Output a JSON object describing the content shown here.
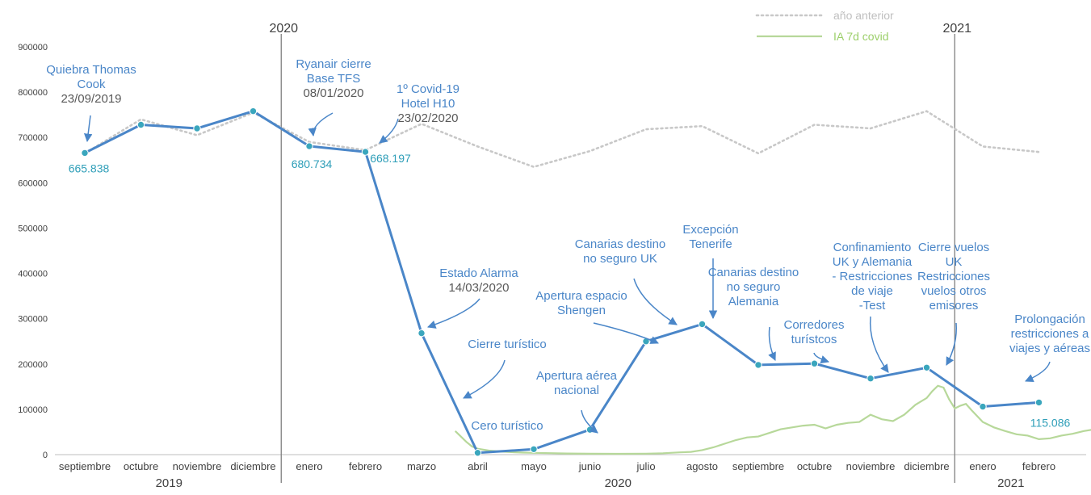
{
  "chart_data": {
    "type": "line",
    "title": "",
    "xlabel": "",
    "ylabel": "",
    "ylim": [
      0,
      900000
    ],
    "yticks": [
      "0",
      "100000",
      "200000",
      "300000",
      "400000",
      "500000",
      "600000",
      "700000",
      "800000",
      "900000"
    ],
    "categories": [
      "septiembre",
      "octubre",
      "noviembre",
      "diciembre",
      "enero",
      "febrero",
      "marzo",
      "abril",
      "mayo",
      "junio",
      "julio",
      "agosto",
      "septiembre",
      "octubre",
      "noviembre",
      "diciembre",
      "enero",
      "febrero"
    ],
    "year_groups": [
      {
        "label": "2019",
        "from": 0,
        "to": 3
      },
      {
        "label": "2020",
        "from": 4,
        "to": 15
      },
      {
        "label": "2021",
        "from": 16,
        "to": 17
      }
    ],
    "year_markers": [
      {
        "label": "2020",
        "after_index": 3
      },
      {
        "label": "2021",
        "after_index": 15
      }
    ],
    "series": [
      {
        "id": "main",
        "values": [
          665838,
          728000,
          720000,
          758000,
          680734,
          668197,
          268000,
          4000,
          12000,
          55000,
          250000,
          288000,
          198000,
          201000,
          168000,
          192000,
          106000,
          115086
        ],
        "color": "#4a86c8"
      },
      {
        "id": "prev",
        "name": "año anterior",
        "values": [
          665000,
          740000,
          705000,
          755000,
          690000,
          672000,
          730000,
          680000,
          635000,
          670000,
          718000,
          725000,
          665000,
          728000,
          720000,
          758000,
          680000,
          668000
        ],
        "color": "#c8c8c8",
        "style": "dotted"
      },
      {
        "id": "covid",
        "name": "IA 7d covid",
        "color": "#b7d89a",
        "samples": [
          [
            6.6,
            52000
          ],
          [
            6.7,
            40000
          ],
          [
            6.8,
            28000
          ],
          [
            6.9,
            18000
          ],
          [
            7.0,
            13000
          ],
          [
            7.2,
            9000
          ],
          [
            7.4,
            7000
          ],
          [
            7.6,
            5500
          ],
          [
            7.8,
            4500
          ],
          [
            8.0,
            4000
          ],
          [
            8.3,
            3200
          ],
          [
            8.6,
            2500
          ],
          [
            9.0,
            2000
          ],
          [
            9.5,
            1800
          ],
          [
            10.0,
            2200
          ],
          [
            10.3,
            3000
          ],
          [
            10.6,
            5000
          ],
          [
            10.8,
            6000
          ],
          [
            11.0,
            10000
          ],
          [
            11.2,
            16000
          ],
          [
            11.4,
            24000
          ],
          [
            11.6,
            32000
          ],
          [
            11.8,
            38000
          ],
          [
            12.0,
            40000
          ],
          [
            12.2,
            48000
          ],
          [
            12.4,
            56000
          ],
          [
            12.6,
            60000
          ],
          [
            12.8,
            64000
          ],
          [
            13.0,
            66000
          ],
          [
            13.2,
            58000
          ],
          [
            13.4,
            66000
          ],
          [
            13.6,
            70000
          ],
          [
            13.8,
            72000
          ],
          [
            14.0,
            88000
          ],
          [
            14.2,
            78000
          ],
          [
            14.4,
            74000
          ],
          [
            14.6,
            88000
          ],
          [
            14.8,
            110000
          ],
          [
            15.0,
            125000
          ],
          [
            15.1,
            140000
          ],
          [
            15.2,
            152000
          ],
          [
            15.3,
            148000
          ],
          [
            15.4,
            122000
          ],
          [
            15.5,
            102000
          ],
          [
            15.6,
            108000
          ],
          [
            15.7,
            112000
          ],
          [
            15.8,
            98000
          ],
          [
            15.9,
            85000
          ],
          [
            16.0,
            72000
          ],
          [
            16.2,
            60000
          ],
          [
            16.4,
            52000
          ],
          [
            16.6,
            45000
          ],
          [
            16.8,
            42000
          ],
          [
            17.0,
            34000
          ],
          [
            17.2,
            36000
          ],
          [
            17.4,
            42000
          ],
          [
            17.6,
            46000
          ],
          [
            17.8,
            52000
          ],
          [
            18.0,
            56000
          ],
          [
            18.2,
            60000
          ]
        ]
      }
    ],
    "value_labels": [
      {
        "index": 0,
        "text": "665.838"
      },
      {
        "index": 4,
        "text": "680.734"
      },
      {
        "index": 5,
        "text": "668.197"
      },
      {
        "index": 17,
        "text": "115.086"
      }
    ],
    "legend": {
      "position": "top-right"
    },
    "annotations": [
      {
        "lines": [
          "Quiebra Thomas",
          "Cook"
        ],
        "subtitle": "23/09/2019",
        "target_index": 0
      },
      {
        "lines": [
          "Ryanair cierre",
          "Base TFS"
        ],
        "subtitle": "08/01/2020",
        "target_index": 4
      },
      {
        "lines": [
          "1º Covid-19",
          "Hotel H10"
        ],
        "subtitle": "23/02/2020",
        "target_index": 5
      },
      {
        "lines": [
          "Estado Alarma"
        ],
        "subtitle": "14/03/2020",
        "target_index": 6
      },
      {
        "lines": [
          "Cierre turístico"
        ],
        "subtitle": "",
        "target_index": 6
      },
      {
        "lines": [
          "Cero turístico"
        ],
        "subtitle": "",
        "target_index": 7
      },
      {
        "lines": [
          "Apertura aérea",
          "nacional"
        ],
        "subtitle": "",
        "target_index": 9
      },
      {
        "lines": [
          "Apertura espacio",
          "Shengen"
        ],
        "subtitle": "",
        "target_index": 10
      },
      {
        "lines": [
          "Canarias destino",
          "no seguro UK"
        ],
        "subtitle": "",
        "target_index": 10
      },
      {
        "lines": [
          "Excepción",
          "Tenerife"
        ],
        "subtitle": "",
        "target_index": 11
      },
      {
        "lines": [
          "Canarias destino",
          "no seguro",
          "Alemania"
        ],
        "subtitle": "",
        "target_index": 12
      },
      {
        "lines": [
          "Corredores",
          "turístcos"
        ],
        "subtitle": "",
        "target_index": 13
      },
      {
        "lines": [
          "Confinamiento",
          "UK y Alemania",
          "- Restricciones",
          "de viaje",
          "-Test"
        ],
        "subtitle": "",
        "target_index": 14
      },
      {
        "lines": [
          "Cierre vuelos",
          "UK",
          "Restricciones",
          "vuelos otros",
          "emisores"
        ],
        "subtitle": "",
        "target_index": 15
      },
      {
        "lines": [
          "Prolongación",
          "restricciones a",
          "viajes y aéreas"
        ],
        "subtitle": "",
        "target_index": 16
      }
    ],
    "grid": false
  }
}
